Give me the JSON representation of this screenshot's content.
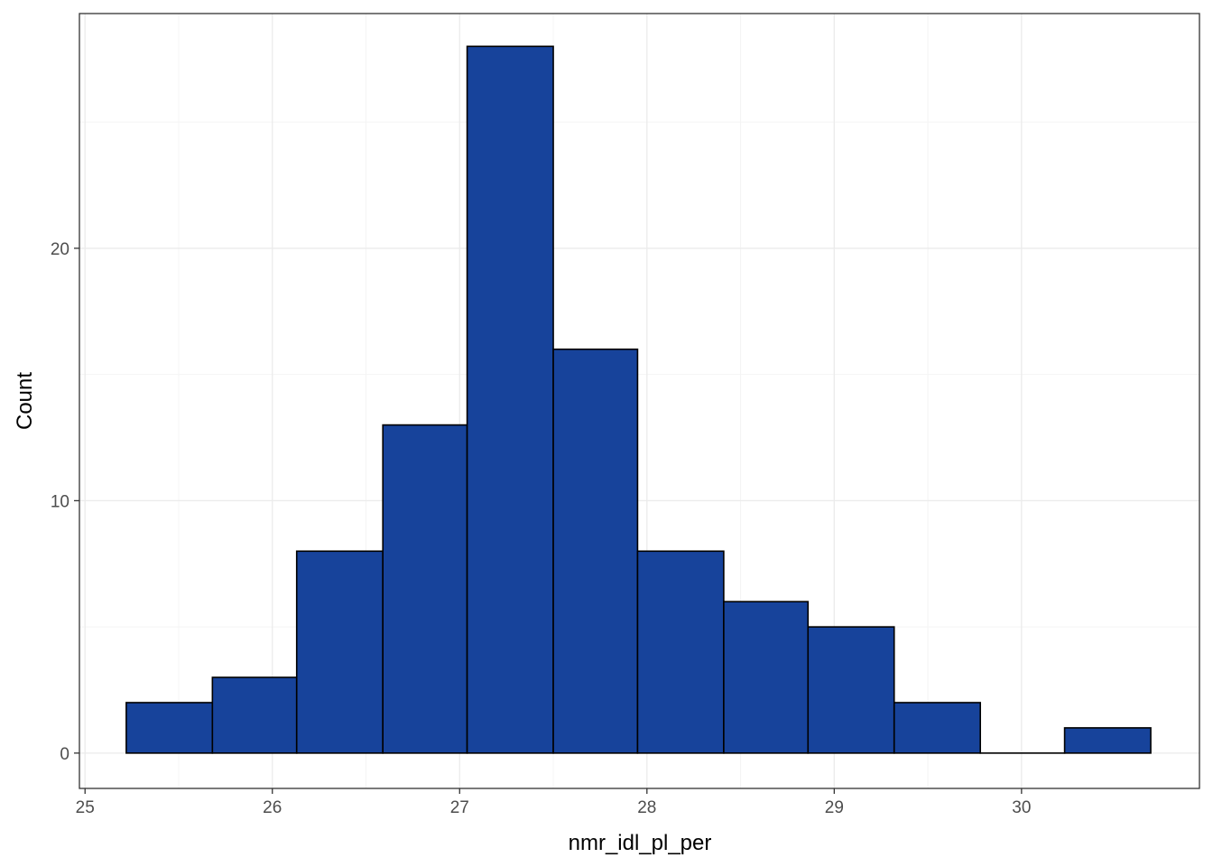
{
  "chart_data": {
    "type": "bar",
    "subtype": "histogram",
    "xlabel": "nmr_idl_pl_per",
    "ylabel": "Count",
    "xlim": [
      24.97,
      30.95
    ],
    "ylim": [
      -1.4,
      29.3
    ],
    "x_ticks": [
      25,
      26,
      27,
      28,
      29,
      30
    ],
    "x_tick_labels": [
      "25",
      "26",
      "27",
      "28",
      "29",
      "30"
    ],
    "y_ticks": [
      0,
      10,
      20
    ],
    "y_tick_labels": [
      "0",
      "10",
      "20"
    ],
    "bins": [
      {
        "x0": 25.22,
        "x1": 25.68,
        "count": 2
      },
      {
        "x0": 25.68,
        "x1": 26.13,
        "count": 3
      },
      {
        "x0": 26.13,
        "x1": 26.59,
        "count": 8
      },
      {
        "x0": 26.59,
        "x1": 27.04,
        "count": 13
      },
      {
        "x0": 27.04,
        "x1": 27.5,
        "count": 28
      },
      {
        "x0": 27.5,
        "x1": 27.95,
        "count": 16
      },
      {
        "x0": 27.95,
        "x1": 28.41,
        "count": 8
      },
      {
        "x0": 28.41,
        "x1": 28.86,
        "count": 6
      },
      {
        "x0": 28.86,
        "x1": 29.32,
        "count": 5
      },
      {
        "x0": 29.32,
        "x1": 29.78,
        "count": 2
      },
      {
        "x0": 29.78,
        "x1": 30.23,
        "count": 0
      },
      {
        "x0": 30.23,
        "x1": 30.69,
        "count": 1
      }
    ],
    "grid": true,
    "legend": "none",
    "bar_fill": "#17439b",
    "bar_outline": "#000000",
    "grid_major_color": "#ebebeb",
    "grid_minor_color": "#f4f4f4",
    "panel_border_color": "#333333"
  }
}
